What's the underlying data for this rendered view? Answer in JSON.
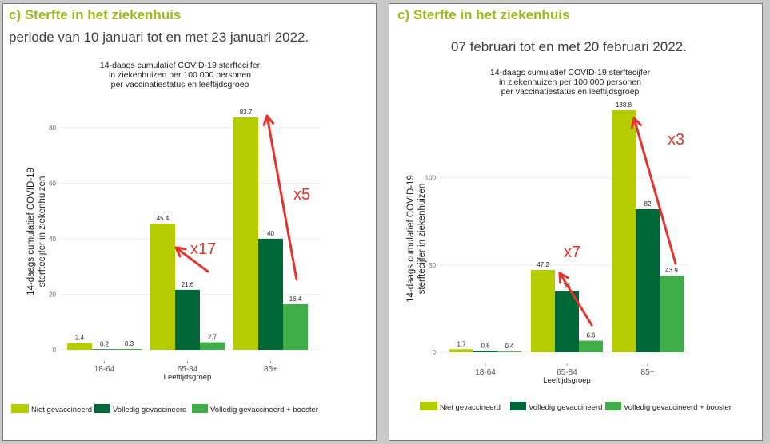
{
  "panels": [
    {
      "heading": "c)  Sterfte in het ziekenhuis",
      "period": "periode  van 10 januari tot en met 23 januari 2022.",
      "annotations": [
        "x17",
        "x5"
      ]
    },
    {
      "heading": "c)  Sterfte in het ziekenhuis",
      "period": "07 februari tot en met 20 februari 2022.",
      "annotations": [
        "x7",
        "x3"
      ]
    }
  ],
  "colors": {
    "niet": "#b5cc00",
    "volledig": "#006837",
    "booster": "#3fae49",
    "annotation": "#e8322d",
    "heading": "#9dbb1d"
  },
  "chart_data": [
    {
      "type": "bar",
      "title": [
        "14-daags cumulatief COVID-19 sterftecijfer",
        "in ziekenhuizen per 100 000 personen",
        "per vaccinatiestatus en leeftijdsgroep"
      ],
      "ylabel": [
        "14-daags cumulatief COVID-19",
        "sterftecijfer in ziekenhuizen"
      ],
      "xlabel": "Leeftijdsgroep",
      "categories": [
        "18-64",
        "65-84",
        "85+"
      ],
      "series": [
        {
          "name": "Niet gevaccineerd",
          "values": [
            2.4,
            45.4,
            83.7
          ],
          "labels": [
            "2.4",
            "45.4",
            "83.7"
          ]
        },
        {
          "name": "Volledig gevaccineerd",
          "values": [
            0.2,
            21.6,
            40
          ],
          "labels": [
            "0.2",
            "21.6",
            "40"
          ]
        },
        {
          "name": "Volledig gevaccineerd + booster",
          "values": [
            0.3,
            2.7,
            16.4
          ],
          "labels": [
            "0.3",
            "2.7",
            "16.4"
          ]
        }
      ],
      "yticks": [
        0,
        20,
        40,
        60,
        80
      ],
      "ylim": [
        0,
        88
      ],
      "legend": "bottom"
    },
    {
      "type": "bar",
      "title": [
        "14-daags cumulatief COVID-19 sterftecijfer",
        "in ziekenhuizen per 100 000 personen",
        "per vaccinatiestatus en leeftijdsgroep"
      ],
      "ylabel": [
        "14-daags cumulatief COVID-19",
        "sterftecijfer in ziekenhuizen"
      ],
      "xlabel": "Leeftijdsgroep",
      "categories": [
        "18-64",
        "65-84",
        "85+"
      ],
      "series": [
        {
          "name": "Niet gevaccineerd",
          "values": [
            1.7,
            47.2,
            138.8
          ],
          "labels": [
            "1.7",
            "47.2",
            "138.8"
          ]
        },
        {
          "name": "Volledig gevaccineerd",
          "values": [
            0.8,
            35,
            82
          ],
          "labels": [
            "0.8",
            "35",
            "82"
          ]
        },
        {
          "name": "Volledig gevaccineerd + booster",
          "values": [
            0.4,
            6.6,
            43.9
          ],
          "labels": [
            "0.4",
            "6.6",
            "43.9"
          ]
        }
      ],
      "yticks": [
        0,
        50,
        100
      ],
      "ylim": [
        0,
        138.8
      ],
      "legend": "bottom"
    }
  ]
}
